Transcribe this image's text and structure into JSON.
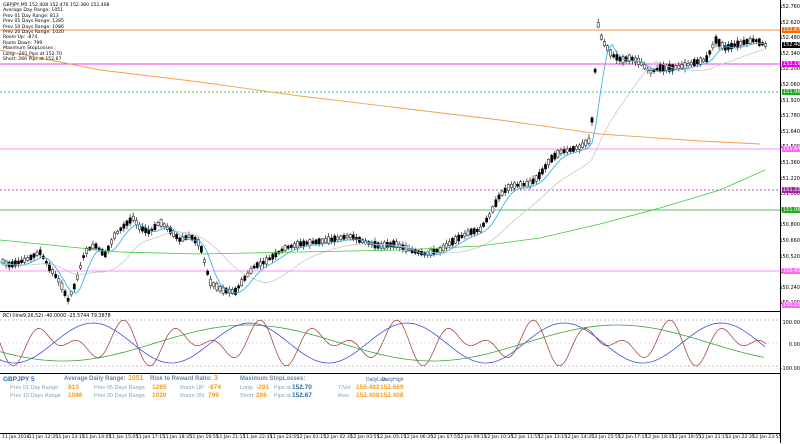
{
  "chart_info": {
    "symbol_line": "GBPJPY,M5  152.408 152.476 152.380 152.408",
    "lines": [
      "Average Day  Range: 1051",
      "Prev 01  Day  Range: 813",
      "Prev 05  Days Range: 1285",
      "Prev 10  Days Range: 1086",
      "Prev 20  Days Range: 1020",
      "Room Up:  -874",
      "Room Down: 799",
      "Maximum StopLosses :",
      "Long:  -291 Pips at 152.70",
      "Short: 266 Pips at 152.67"
    ]
  },
  "price_axis": {
    "ticks": [
      "152.760",
      "152.620",
      "152.480",
      "152.340",
      "152.200",
      "152.060",
      "151.920",
      "151.780",
      "151.640",
      "151.500",
      "151.360",
      "151.220",
      "151.080",
      "150.940",
      "150.800",
      "150.660",
      "150.520",
      "150.380",
      "150.240",
      "150.100"
    ],
    "tags": [
      {
        "label": "152.676",
        "color": "#ff6a00"
      },
      {
        "label": "152.408",
        "color": "#000000"
      },
      {
        "label": "152.198",
        "color": "#ee00ee"
      },
      {
        "label": "151.962",
        "color": "#22aa22"
      },
      {
        "label": "151.640",
        "color": "#ff66ff"
      },
      {
        "label": "151.222",
        "color": "#aa22aa"
      },
      {
        "label": "151.062",
        "color": "#22aa22"
      },
      {
        "label": "150.412",
        "color": "#ff66ff"
      },
      {
        "label": "150.100",
        "color": "#ff66ff"
      }
    ]
  },
  "cci": {
    "title": "RCI (line9,26,52) -40.0000 -25.5744 79.3878",
    "ticks": [
      "100.00",
      "0.00",
      "-100.00"
    ]
  },
  "panel": {
    "symbol": "GBPJPY  5",
    "adr_title": "Average Daily Range:",
    "adr_value": "1051",
    "adr_rows": [
      {
        "label": "Prev 01 Day Range",
        "value": "813"
      },
      {
        "label": "Prev 05 Days Range",
        "value": "1285"
      },
      {
        "label": "Prev 10 Days Range",
        "value": "1086"
      },
      {
        "label": "Prev 20 Days Range",
        "value": "1020"
      }
    ],
    "rr_title": "Risk to Reward Ratio:",
    "rr_value": "3",
    "room_rows": [
      {
        "label": "Room UP",
        "value": "-874"
      },
      {
        "label": "Room DN",
        "value": "799"
      }
    ],
    "msl_title": "Maximum StopLosses:",
    "msl_rows": [
      {
        "label": "Long:",
        "value": "-291",
        "pips_label": "Pips at",
        "price": "152.70"
      },
      {
        "label": "Short:",
        "value": "266",
        "pips_label": "Pips at",
        "price": "152.67"
      }
    ],
    "tt_rows": [
      {
        "label": "T/Vol",
        "low": "150.482",
        "high": "152.669"
      },
      {
        "label": "Rew",
        "low": "152.408",
        "high": "152.408"
      }
    ],
    "daily_low_label": "DailyLow",
    "daily_high_label": "DailyHigh"
  },
  "time_axis": {
    "ticks": [
      "11 Jan 2018",
      "11 Jan 12:35",
      "11 Jan 13:15",
      "11 Jan 14:05",
      "11 Jan 15:05",
      "11 Jan 17:15",
      "11 Jan 18:35",
      "11 Jan 19:55",
      "11 Jan 21:15",
      "11 Jan 22:35",
      "11 Jan 23:55",
      "12 Jan 01:15",
      "12 Jan 02:35",
      "12 Jan 03:55",
      "12 Jan 05:15",
      "12 Jan 06:35",
      "12 Jan 07:55",
      "12 Jan 09:15",
      "12 Jan 10:35",
      "12 Jan 11:55",
      "12 Jan 13:15",
      "12 Jan 14:35",
      "12 Jan 15:55",
      "12 Jan 17:15",
      "12 Jan 18:35",
      "12 Jan 19:55",
      "12 Jan 21:15",
      "12 Jan 22:35",
      "12 Jan 23:55"
    ]
  },
  "colors": {
    "candle": "#000000",
    "ma_fast": "#3cb4e6",
    "ma_mid": "#c8c8c8",
    "ma_slow": "#3cc83c",
    "trend": "#f0a050",
    "rci_red": "#a0322a",
    "rci_blue": "#3c50dc",
    "rci_green": "#3ca03c"
  }
}
